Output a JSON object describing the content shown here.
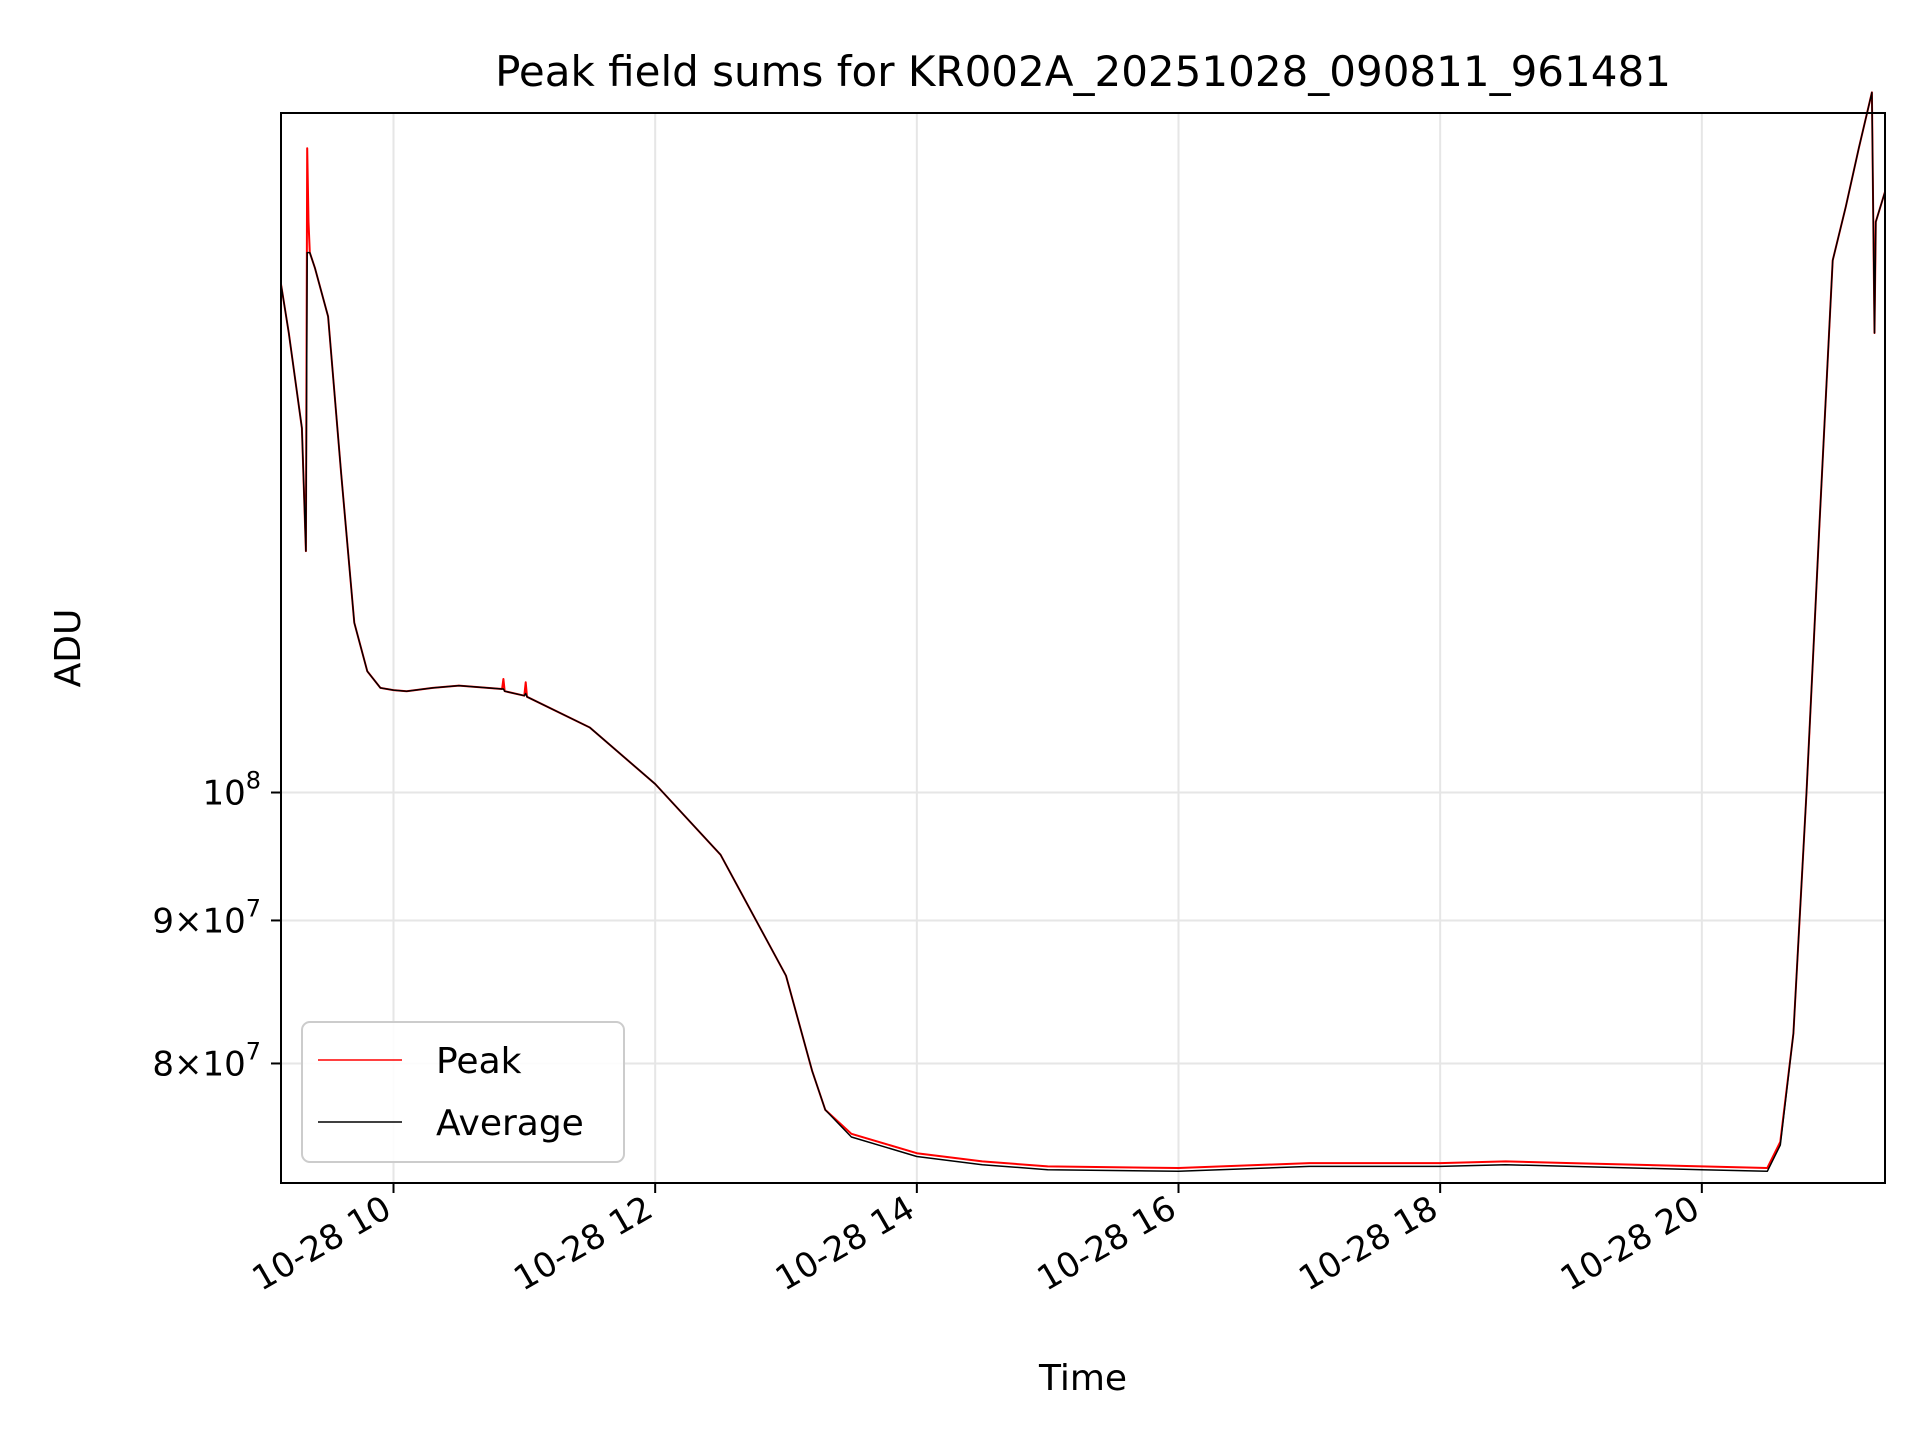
{
  "chart_data": {
    "type": "line",
    "title": "Peak field sums for KR002A_20251028_090811_961481",
    "xlabel": "Time",
    "ylabel": "ADU",
    "yscale": "log",
    "xlim": [
      9.14,
      21.4
    ],
    "ylim": [
      72500000,
      175000000
    ],
    "grid": true,
    "legend_position": "lower-left",
    "x_ticks": [
      {
        "value": 10,
        "label": "10-28 10"
      },
      {
        "value": 12,
        "label": "10-28 12"
      },
      {
        "value": 14,
        "label": "10-28 14"
      },
      {
        "value": 16,
        "label": "10-28 16"
      },
      {
        "value": 18,
        "label": "10-28 18"
      },
      {
        "value": 20,
        "label": "10-28 20"
      }
    ],
    "y_ticks": [
      {
        "value": 80000000,
        "mantissa": "8",
        "base": "10",
        "exp": "7"
      },
      {
        "value": 90000000,
        "mantissa": "9",
        "base": "10",
        "exp": "7"
      },
      {
        "value": 100000000,
        "mantissa": "",
        "base": "10",
        "exp": "8"
      }
    ],
    "series": [
      {
        "name": "Peak",
        "color": "#ff0000",
        "x": [
          9.14,
          9.2,
          9.3,
          9.33,
          9.34,
          9.35,
          9.36,
          9.4,
          9.5,
          9.6,
          9.7,
          9.8,
          9.9,
          10.0,
          10.1,
          10.3,
          10.5,
          10.83,
          10.84,
          10.85,
          11.0,
          11.01,
          11.02,
          11.5,
          12.0,
          12.5,
          13.0,
          13.2,
          13.3,
          13.5,
          14.0,
          14.5,
          15.0,
          16.0,
          17.0,
          18.0,
          18.5,
          19.0,
          20.0,
          20.5,
          20.6,
          20.7,
          20.8,
          20.9,
          21.0,
          21.1,
          21.2,
          21.3,
          21.32,
          21.33,
          21.4
        ],
        "y": [
          152000000,
          146000000,
          135000000,
          122000000,
          170000000,
          160000000,
          156000000,
          154000000,
          148000000,
          130000000,
          115000000,
          110500000,
          109000000,
          108800000,
          108700000,
          109000000,
          109200000,
          108900000,
          109800000,
          108700000,
          108300000,
          109500000,
          108200000,
          105500000,
          100700000,
          95000000,
          86000000,
          79500000,
          77000000,
          75500000,
          74300000,
          73800000,
          73500000,
          73400000,
          73700000,
          73700000,
          73800000,
          73700000,
          73500000,
          73400000,
          75000000,
          82000000,
          100000000,
          125000000,
          155000000,
          162000000,
          170000000,
          178000000,
          146000000,
          160000000,
          164000000
        ]
      },
      {
        "name": "Average",
        "color": "#000000",
        "x": [
          9.14,
          9.2,
          9.3,
          9.33,
          9.34,
          9.35,
          9.36,
          9.4,
          9.5,
          9.6,
          9.7,
          9.8,
          9.9,
          10.0,
          10.1,
          10.3,
          10.5,
          10.83,
          10.84,
          10.85,
          11.0,
          11.01,
          11.02,
          11.5,
          12.0,
          12.5,
          13.0,
          13.2,
          13.3,
          13.5,
          14.0,
          14.5,
          15.0,
          16.0,
          17.0,
          18.0,
          18.5,
          19.0,
          20.0,
          20.5,
          20.6,
          20.7,
          20.8,
          20.9,
          21.0,
          21.1,
          21.2,
          21.3,
          21.32,
          21.33,
          21.4
        ],
        "y": [
          152000000,
          146000000,
          135000000,
          122000000,
          156000000,
          156000000,
          156000000,
          154000000,
          148000000,
          130000000,
          115000000,
          110500000,
          109000000,
          108800000,
          108700000,
          109000000,
          109200000,
          108900000,
          108900000,
          108700000,
          108300000,
          108500000,
          108200000,
          105500000,
          100700000,
          95000000,
          86000000,
          79500000,
          77000000,
          75300000,
          74100000,
          73600000,
          73300000,
          73200000,
          73500000,
          73500000,
          73600000,
          73500000,
          73300000,
          73200000,
          74800000,
          82000000,
          100000000,
          125000000,
          155000000,
          162000000,
          170000000,
          178000000,
          146000000,
          160000000,
          164000000
        ]
      }
    ]
  }
}
